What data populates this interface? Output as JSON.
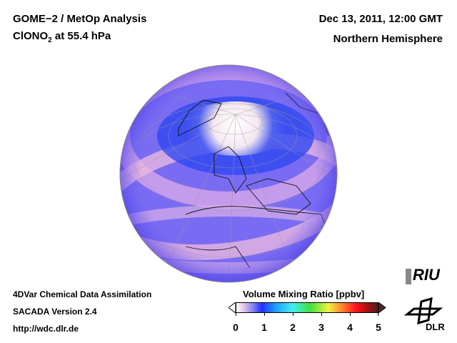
{
  "header": {
    "title": "GOME−2 / MetOp Analysis",
    "species": "ClONO",
    "species_sub": "2",
    "level": " at 55.4 hPa",
    "date": "Dec 13, 2011, 12:00 GMT",
    "region": "Northern Hemisphere"
  },
  "footer": {
    "line1": "4DVar Chemical Data Assimilation",
    "line2": "SACADA Version 2.4",
    "line3": "http://wdc.dlr.de"
  },
  "colorbar": {
    "title": "Volume Mixing Ratio [ppbv]",
    "ticks": [
      "0",
      "1",
      "2",
      "3",
      "4",
      "5"
    ],
    "min": 0,
    "max": 5
  },
  "logos": {
    "riu": "RIU",
    "dlr": "DLR"
  }
}
